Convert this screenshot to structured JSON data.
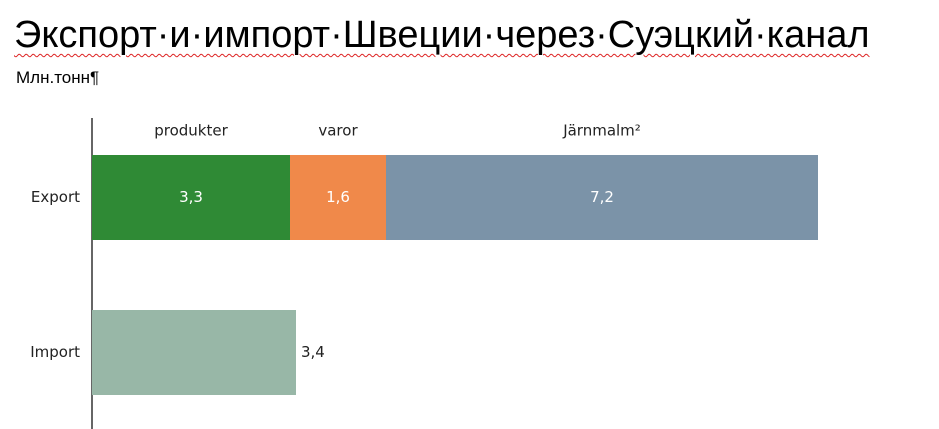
{
  "chart_data": {
    "type": "stacked-bar-horizontal",
    "title": "Экспорт·и·импорт·Швеции·через·Суэцкий·канал",
    "subtitle": "Млн.тонн¶",
    "categories": [
      "Export",
      "Import"
    ],
    "series": [
      {
        "name": "produkter",
        "color": "#2f8a35",
        "values": [
          3.3,
          null
        ],
        "value_labels": [
          "3,3",
          null
        ]
      },
      {
        "name": "varor",
        "color": "#f0894a",
        "values": [
          1.6,
          null
        ],
        "value_labels": [
          "1,6",
          null
        ]
      },
      {
        "name": "Järnmalm²",
        "color": "#7b93a8",
        "values": [
          7.2,
          null
        ],
        "value_labels": [
          "7,2",
          null
        ]
      },
      {
        "color": "#98b7a7",
        "values": [
          null,
          3.4
        ],
        "value_labels": [
          null,
          "3,4"
        ]
      }
    ]
  }
}
